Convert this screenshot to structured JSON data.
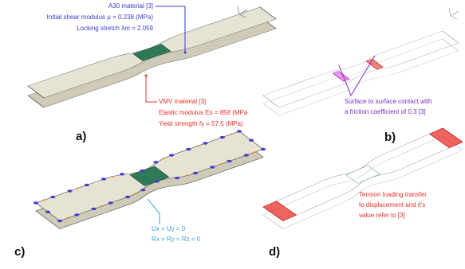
{
  "panels": [
    {
      "label": "a)",
      "annotations": [
        {
          "lines": [
            "A30 material [3]",
            "Initial shear modulus μ = 0.238 (MPa)",
            "Locking stretch λm = 2.059"
          ]
        },
        {
          "lines": [
            "VMV material [3]",
            "Elastic modulus Es = 858 (MPa",
            "Yield strength fy = 57.5 (MPa)"
          ]
        }
      ]
    },
    {
      "label": "b)",
      "annotations": [
        {
          "lines": [
            "Surface to surface contact with",
            "a friction coefficient of 0.3 [3]"
          ]
        }
      ]
    },
    {
      "label": "c)",
      "annotations": [
        {
          "lines": [
            "Ux = Uy = 0",
            "Rx = Ry = Rz = 0"
          ]
        }
      ]
    },
    {
      "label": "d)",
      "annotations": [
        {
          "lines": [
            "Tension loading transfer",
            "to displacement and it's",
            "value refer to [3]"
          ]
        }
      ]
    }
  ]
}
